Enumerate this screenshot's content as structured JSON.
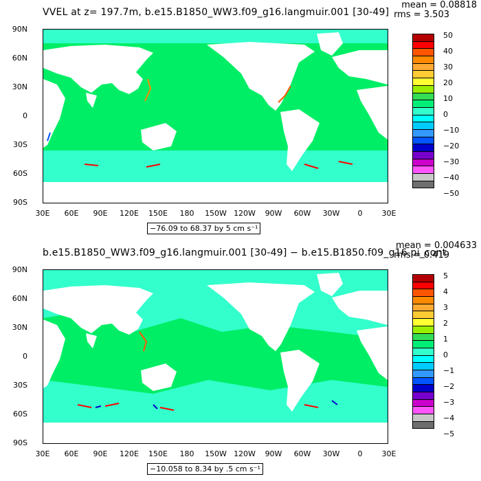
{
  "panels": [
    {
      "title": "VVEL at z= 197.7m, b.e15.B1850_WW3.f09_g16.langmuir.001 [30-49]",
      "mean": "mean = 0.08818",
      "rms": "rms = 3.503",
      "range": "−76.09 to 68.37 by 5 cm s⁻¹",
      "colorbar_labels": [
        "50",
        "40",
        "30",
        "20",
        "10",
        "0",
        "−10",
        "−20",
        "−30",
        "−40",
        "−50"
      ]
    },
    {
      "title": "b.e15.B1850_WW3.f09_g16.langmuir.001 [30-49] − b.e15.B1850.f09_g16.pi_cont",
      "mean": "mean = 0.004633",
      "rms": "rms = 0.419",
      "range": "−10.058 to 8.34 by .5 cm s⁻¹",
      "colorbar_labels": [
        "5",
        "4",
        "3",
        "2",
        "1",
        "0",
        "−1",
        "−2",
        "−3",
        "−4",
        "−5"
      ]
    }
  ],
  "lat_labels": [
    "90N",
    "60N",
    "30N",
    "0",
    "30S",
    "60S",
    "90S"
  ],
  "lon_labels": [
    "30E",
    "60E",
    "90E",
    "120E",
    "150E",
    "180",
    "150W",
    "120W",
    "90W",
    "60W",
    "30W",
    "0",
    "30E"
  ],
  "colors": {
    "ocean_main": "#00ee66",
    "ocean_light": "#33ffcc",
    "land": "#ffffff",
    "colorbar": [
      "#b40000",
      "#ff0000",
      "#ff5500",
      "#ff8a00",
      "#ffaa33",
      "#ffcc33",
      "#ffff33",
      "#99ee00",
      "#33dd55",
      "#00ee77",
      "#33ffcc",
      "#00ffff",
      "#00ccff",
      "#3399ff",
      "#0055ff",
      "#0000cc",
      "#7700cc",
      "#cc00cc",
      "#ff55ff",
      "#c8c8c8",
      "#6e6e6e"
    ]
  }
}
